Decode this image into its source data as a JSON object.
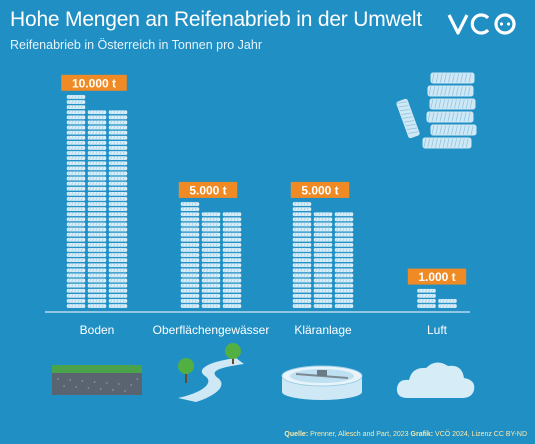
{
  "header": {
    "title": "Hohe Mengen an Reifenabrieb in der Umwelt",
    "subtitle": "Reifenabrieb in Österreich in Tonnen pro Jahr",
    "logo_text": "VCÖ"
  },
  "chart_data": {
    "type": "bar",
    "title": "Hohe Mengen an Reifenabrieb in der Umwelt",
    "subtitle": "Reifenabrieb in Österreich in Tonnen pro Jahr",
    "categories": [
      "Boden",
      "Oberflächengewässer",
      "Kläranlage",
      "Luft"
    ],
    "values": [
      10000,
      5000,
      5000,
      1000
    ],
    "value_labels": [
      "10.000 t",
      "5.000 t",
      "5.000 t",
      "1.000 t"
    ],
    "unit": "t",
    "xlabel": "",
    "ylabel": "",
    "grid": false,
    "legend": "none"
  },
  "icons": [
    "soil-icon",
    "river-icon",
    "treatment-plant-icon",
    "cloud-icon"
  ],
  "source": {
    "label": "Quelle:",
    "text": "Prenner, Allesch and Part, 2023",
    "graphic_label": "Grafik:",
    "graphic_text": "VCÖ 2024, Lizenz CC BY-ND"
  },
  "colors": {
    "background": "#1f8fc4",
    "tire": "#d9eef8",
    "tire_stroke": "#1f8fc4",
    "badge": "#f08a24",
    "tire_heap": "#cfe8f5"
  }
}
